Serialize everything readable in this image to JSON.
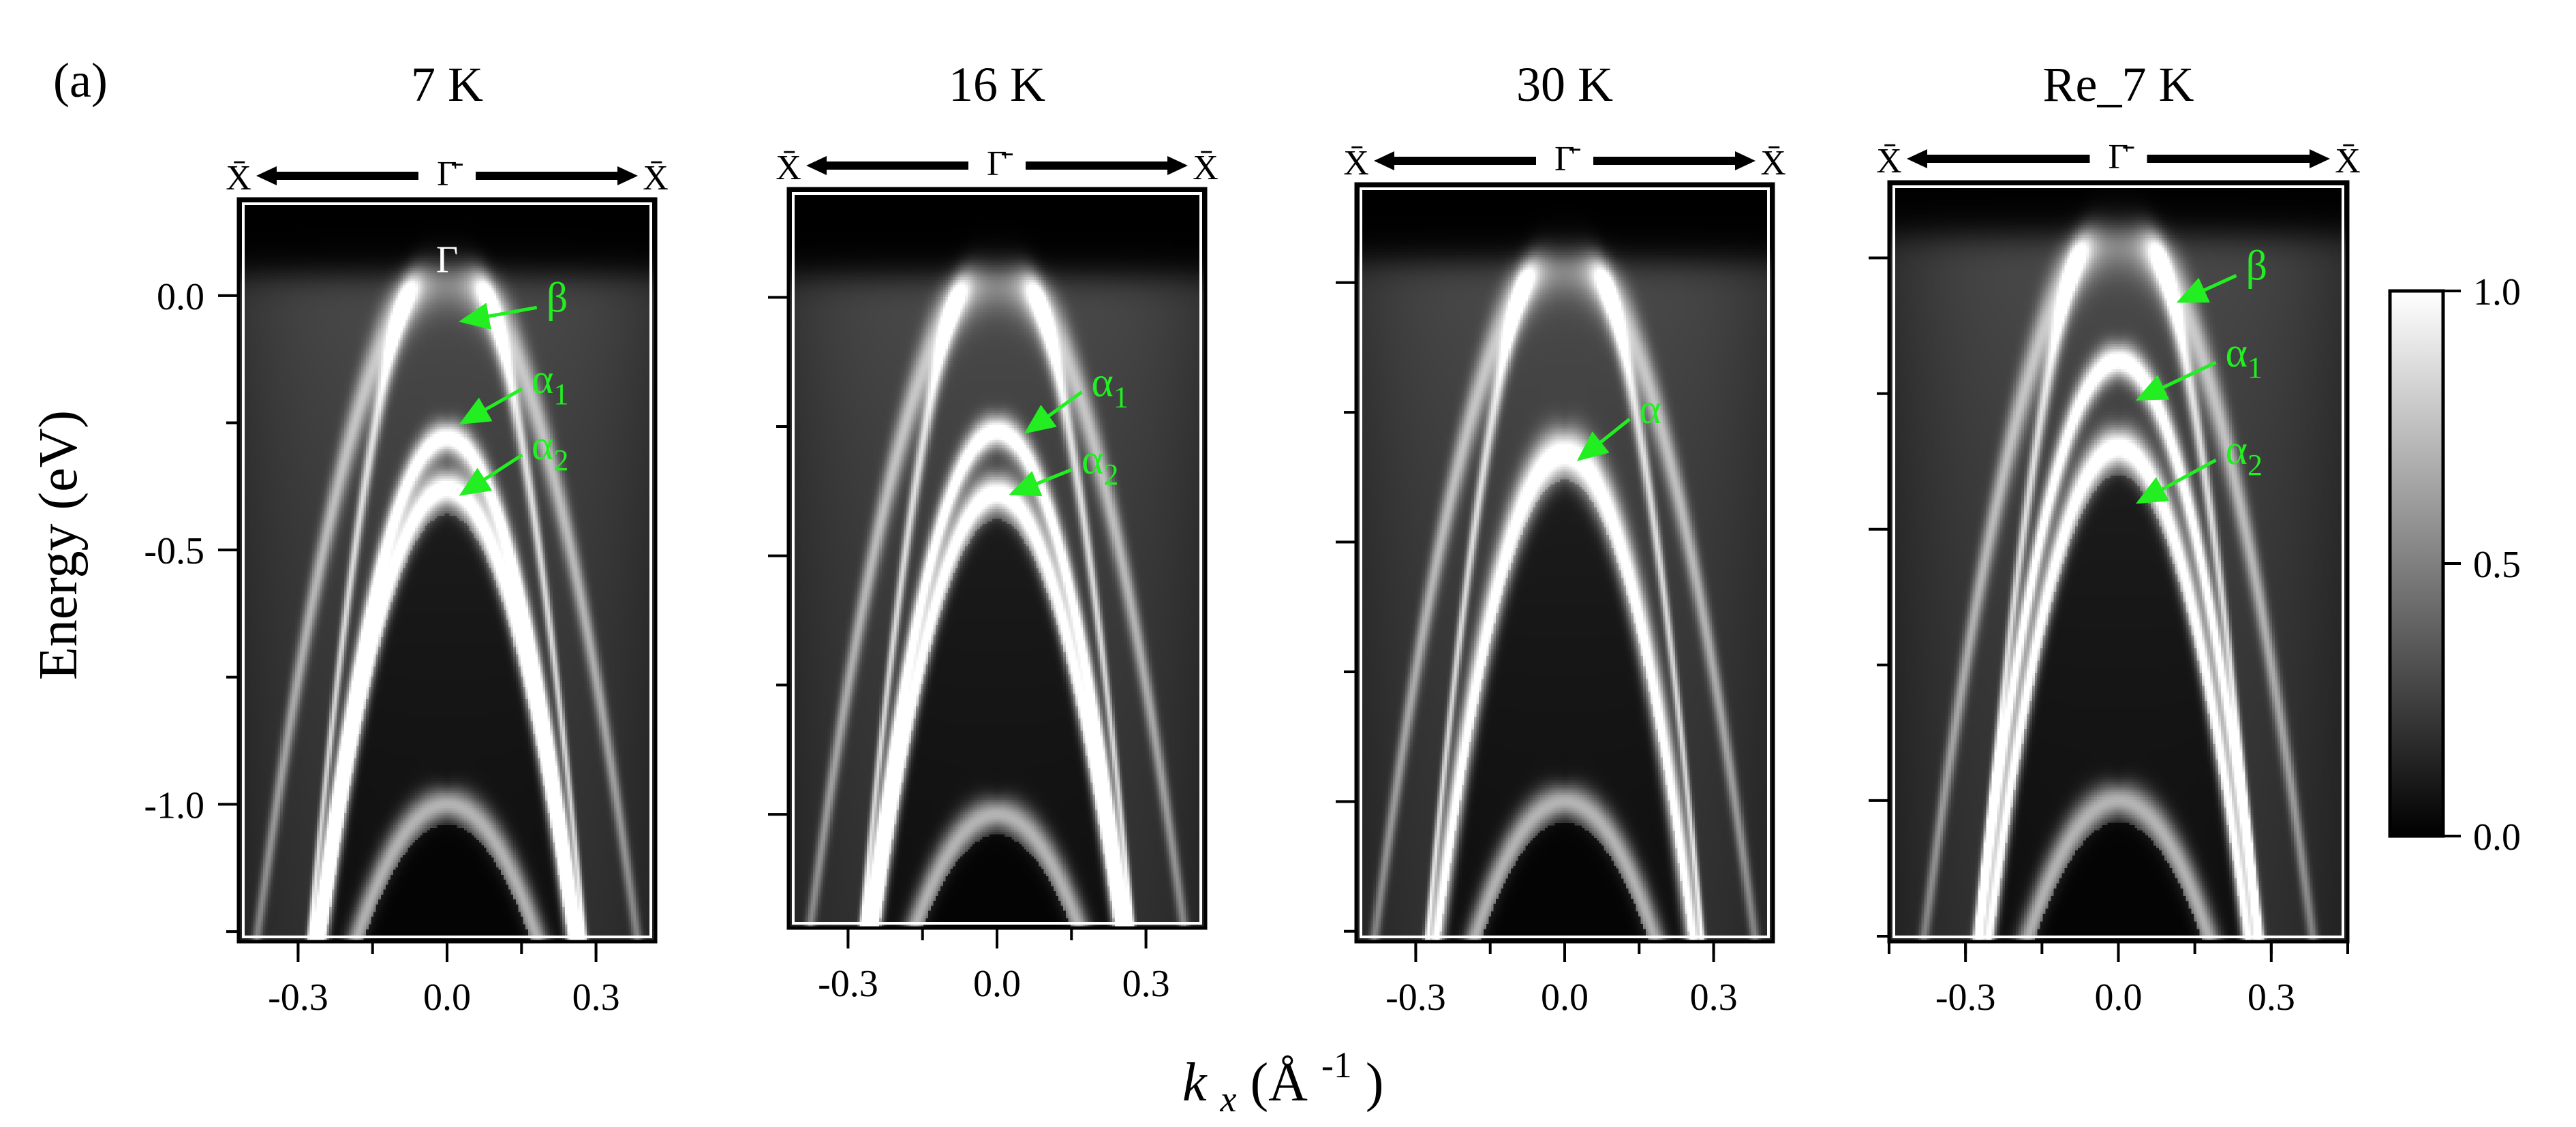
{
  "figure_label": "(a)",
  "ylabel": "Energy (eV)",
  "xlabel": {
    "main": "k",
    "sub": "x",
    "rest": "(Å",
    "exp": "-1",
    "close": ")"
  },
  "colors": {
    "annotation": "#22ee22",
    "frame": "#000000"
  },
  "chart_data": [
    {
      "type": "heatmap",
      "title": "7 K",
      "symmetry": {
        "left": "X̄",
        "center": "Γ̄",
        "right": "X̄"
      },
      "xlim": [
        -0.42,
        0.42
      ],
      "ylim": [
        -1.27,
        0.19
      ],
      "xticks": [
        -0.3,
        0.0,
        0.3
      ],
      "xtick_labels": [
        "-0.3",
        "0.0",
        "0.3"
      ],
      "yticks": [
        0.0,
        -0.5,
        -1.0
      ],
      "ytick_labels": [
        "0.0",
        "-0.5",
        "-1.0"
      ],
      "bands": [
        {
          "label": "α1",
          "apex_eV": -0.28,
          "sigma": 0.03
        },
        {
          "label": "α2",
          "apex_eV": -0.38,
          "sigma": 0.035
        },
        {
          "label": "deep",
          "apex_eV": -1.0,
          "sigma": 0.03
        }
      ],
      "point_label": {
        "text": "Γ",
        "k": 0.0,
        "E": 0.07
      },
      "annotations": [
        {
          "text": "β",
          "sub": "",
          "label_k": 0.2,
          "label_E": -0.01,
          "tip_k": 0.03,
          "tip_E": -0.05
        },
        {
          "text": "α",
          "sub": "1",
          "label_k": 0.17,
          "label_E": -0.17,
          "tip_k": 0.03,
          "tip_E": -0.25
        },
        {
          "text": "α",
          "sub": "2",
          "label_k": 0.17,
          "label_E": -0.3,
          "tip_k": 0.03,
          "tip_E": -0.39
        }
      ]
    },
    {
      "type": "heatmap",
      "title": "16 K",
      "symmetry": {
        "left": "X̄",
        "center": "Γ̄",
        "right": "X̄"
      },
      "xlim": [
        -0.42,
        0.42
      ],
      "ylim": [
        -1.22,
        0.21
      ],
      "xticks": [
        -0.3,
        0.0,
        0.3
      ],
      "xtick_labels": [
        "-0.3",
        "0.0",
        "0.3"
      ],
      "yticks": [
        0.0,
        -0.5,
        -1.0
      ],
      "ytick_labels": [
        "",
        "",
        ""
      ],
      "bands": [
        {
          "label": "α1",
          "apex_eV": -0.26,
          "sigma": 0.03
        },
        {
          "label": "α2",
          "apex_eV": -0.38,
          "sigma": 0.035
        },
        {
          "label": "deep",
          "apex_eV": -1.0,
          "sigma": 0.03
        }
      ],
      "point_label": null,
      "annotations": [
        {
          "text": "α",
          "sub": "1",
          "label_k": 0.19,
          "label_E": -0.17,
          "tip_k": 0.06,
          "tip_E": -0.26
        },
        {
          "text": "α",
          "sub": "2",
          "label_k": 0.17,
          "label_E": -0.32,
          "tip_k": 0.03,
          "tip_E": -0.38
        }
      ]
    },
    {
      "type": "heatmap",
      "title": "30 K",
      "symmetry": {
        "left": "X̄",
        "center": "Γ̄",
        "right": "X̄"
      },
      "xlim": [
        -0.42,
        0.42
      ],
      "ylim": [
        -1.27,
        0.19
      ],
      "xticks": [
        -0.3,
        0.0,
        0.3
      ],
      "xtick_labels": [
        "-0.3",
        "0.0",
        "0.3"
      ],
      "yticks": [
        0.0,
        -0.5,
        -1.0
      ],
      "ytick_labels": [
        "",
        "",
        ""
      ],
      "bands": [
        {
          "label": "α",
          "apex_eV": -0.33,
          "sigma": 0.045
        },
        {
          "label": "deep",
          "apex_eV": -1.0,
          "sigma": 0.03
        }
      ],
      "point_label": null,
      "annotations": [
        {
          "text": "α",
          "sub": "",
          "label_k": 0.15,
          "label_E": -0.25,
          "tip_k": 0.03,
          "tip_E": -0.34
        }
      ]
    },
    {
      "type": "heatmap",
      "title": "Re_7 K",
      "symmetry": {
        "left": "X̄",
        "center": "Γ̄",
        "right": "X̄"
      },
      "xlim": [
        -0.45,
        0.45
      ],
      "ylim": [
        -1.26,
        0.14
      ],
      "xticks": [
        -0.3,
        0.0,
        0.3
      ],
      "xtick_labels": [
        "-0.3",
        "0.0",
        "0.3"
      ],
      "yticks": [
        0.0,
        -0.5,
        -1.0
      ],
      "ytick_labels": [
        "",
        "",
        ""
      ],
      "bands": [
        {
          "label": "α1",
          "apex_eV": -0.19,
          "sigma": 0.03
        },
        {
          "label": "α2",
          "apex_eV": -0.35,
          "sigma": 0.035
        },
        {
          "label": "deep",
          "apex_eV": -1.0,
          "sigma": 0.03
        }
      ],
      "point_label": null,
      "annotations": [
        {
          "text": "β",
          "sub": "",
          "label_k": 0.25,
          "label_E": -0.02,
          "tip_k": 0.12,
          "tip_E": -0.08
        },
        {
          "text": "α",
          "sub": "1",
          "label_k": 0.21,
          "label_E": -0.18,
          "tip_k": 0.04,
          "tip_E": -0.26
        },
        {
          "text": "α",
          "sub": "2",
          "label_k": 0.21,
          "label_E": -0.36,
          "tip_k": 0.04,
          "tip_E": -0.45
        }
      ]
    }
  ],
  "colorbar": {
    "range": [
      0.0,
      1.0
    ],
    "ticks": [
      0.0,
      0.5,
      1.0
    ],
    "tick_labels": [
      "0.0",
      "0.5",
      "1.0"
    ],
    "colormap": "grayscale"
  }
}
